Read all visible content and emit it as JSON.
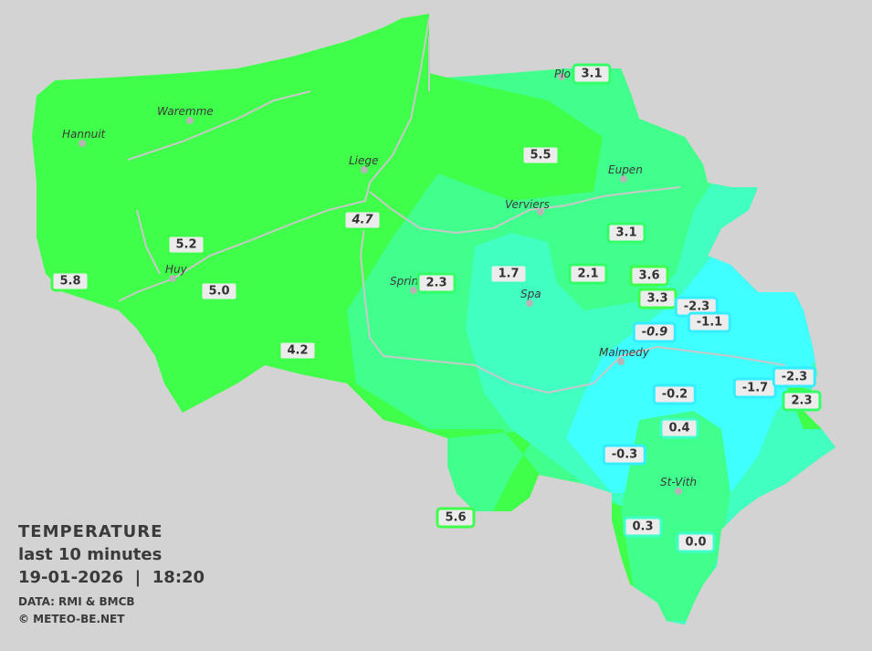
{
  "title": {
    "heading": "TEMPERATURE",
    "period": "last 10 minutes",
    "datetime": "19-01-2026  |  18:20",
    "source": "DATA: RMI & BMCB",
    "copyright": "© METEO-BE.NET"
  },
  "colors": {
    "warm": "#40ff4a",
    "mild": "#40ff8c",
    "cool": "#40ffc0",
    "cold": "#40ffff",
    "background": "#d3d3d3"
  },
  "cities": [
    {
      "name": "Hannuit"
    },
    {
      "name": "Waremme"
    },
    {
      "name": "Liege"
    },
    {
      "name": "Huy"
    },
    {
      "name": "Verviers"
    },
    {
      "name": "Eupen"
    },
    {
      "name": "Sprin"
    },
    {
      "name": "Spa"
    },
    {
      "name": "Malmedy"
    },
    {
      "name": "St-Vith"
    },
    {
      "name": "Plo"
    }
  ],
  "measurements": [
    {
      "value": "3.1"
    },
    {
      "value": "5.5"
    },
    {
      "value": "4.7",
      "italic": true
    },
    {
      "value": "5.2"
    },
    {
      "value": "5.8"
    },
    {
      "value": "5.0"
    },
    {
      "value": "4.2"
    },
    {
      "value": "2.3"
    },
    {
      "value": "1.7"
    },
    {
      "value": "2.1"
    },
    {
      "value": "3.1"
    },
    {
      "value": "3.6"
    },
    {
      "value": "3.3"
    },
    {
      "value": "-2.3"
    },
    {
      "value": "-1.1"
    },
    {
      "value": "-0.9",
      "italic": true
    },
    {
      "value": "-0.2"
    },
    {
      "value": "-1.7"
    },
    {
      "value": "-2.3"
    },
    {
      "value": "2.3"
    },
    {
      "value": "0.4"
    },
    {
      "value": "-0.3"
    },
    {
      "value": "0.3"
    },
    {
      "value": "0.0"
    },
    {
      "value": "5.6"
    }
  ]
}
